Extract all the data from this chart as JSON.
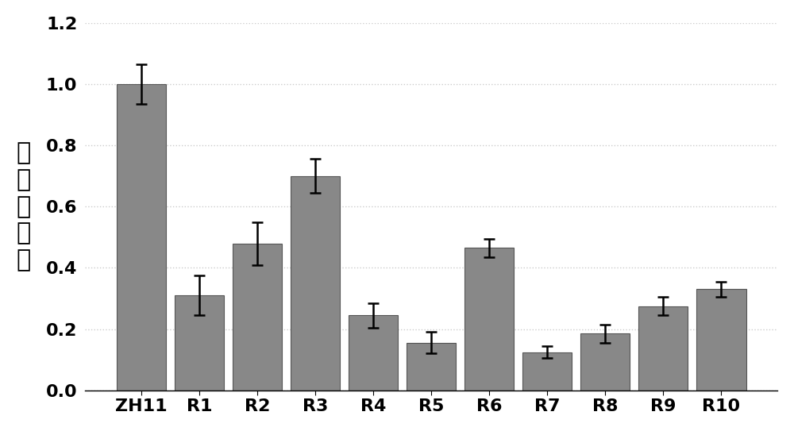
{
  "categories": [
    "ZH11",
    "R1",
    "R2",
    "R3",
    "R4",
    "R5",
    "R6",
    "R7",
    "R8",
    "R9",
    "R10"
  ],
  "values": [
    1.0,
    0.31,
    0.48,
    0.7,
    0.245,
    0.155,
    0.465,
    0.125,
    0.185,
    0.275,
    0.33
  ],
  "errors": [
    0.065,
    0.065,
    0.07,
    0.055,
    0.04,
    0.035,
    0.03,
    0.02,
    0.03,
    0.03,
    0.025
  ],
  "bar_color": "#888888",
  "bar_edge_color": "#555555",
  "error_color": "black",
  "ylabel_chars": [
    "相",
    "对",
    "表",
    "达",
    "量"
  ],
  "ylim": [
    0,
    1.2
  ],
  "yticks": [
    0,
    0.2,
    0.4,
    0.6,
    0.8,
    1.0,
    1.2
  ],
  "background_color": "#ffffff",
  "grid_color": "#cccccc",
  "ylabel_fontsize": 22,
  "tick_fontsize": 16,
  "bar_width": 0.85
}
